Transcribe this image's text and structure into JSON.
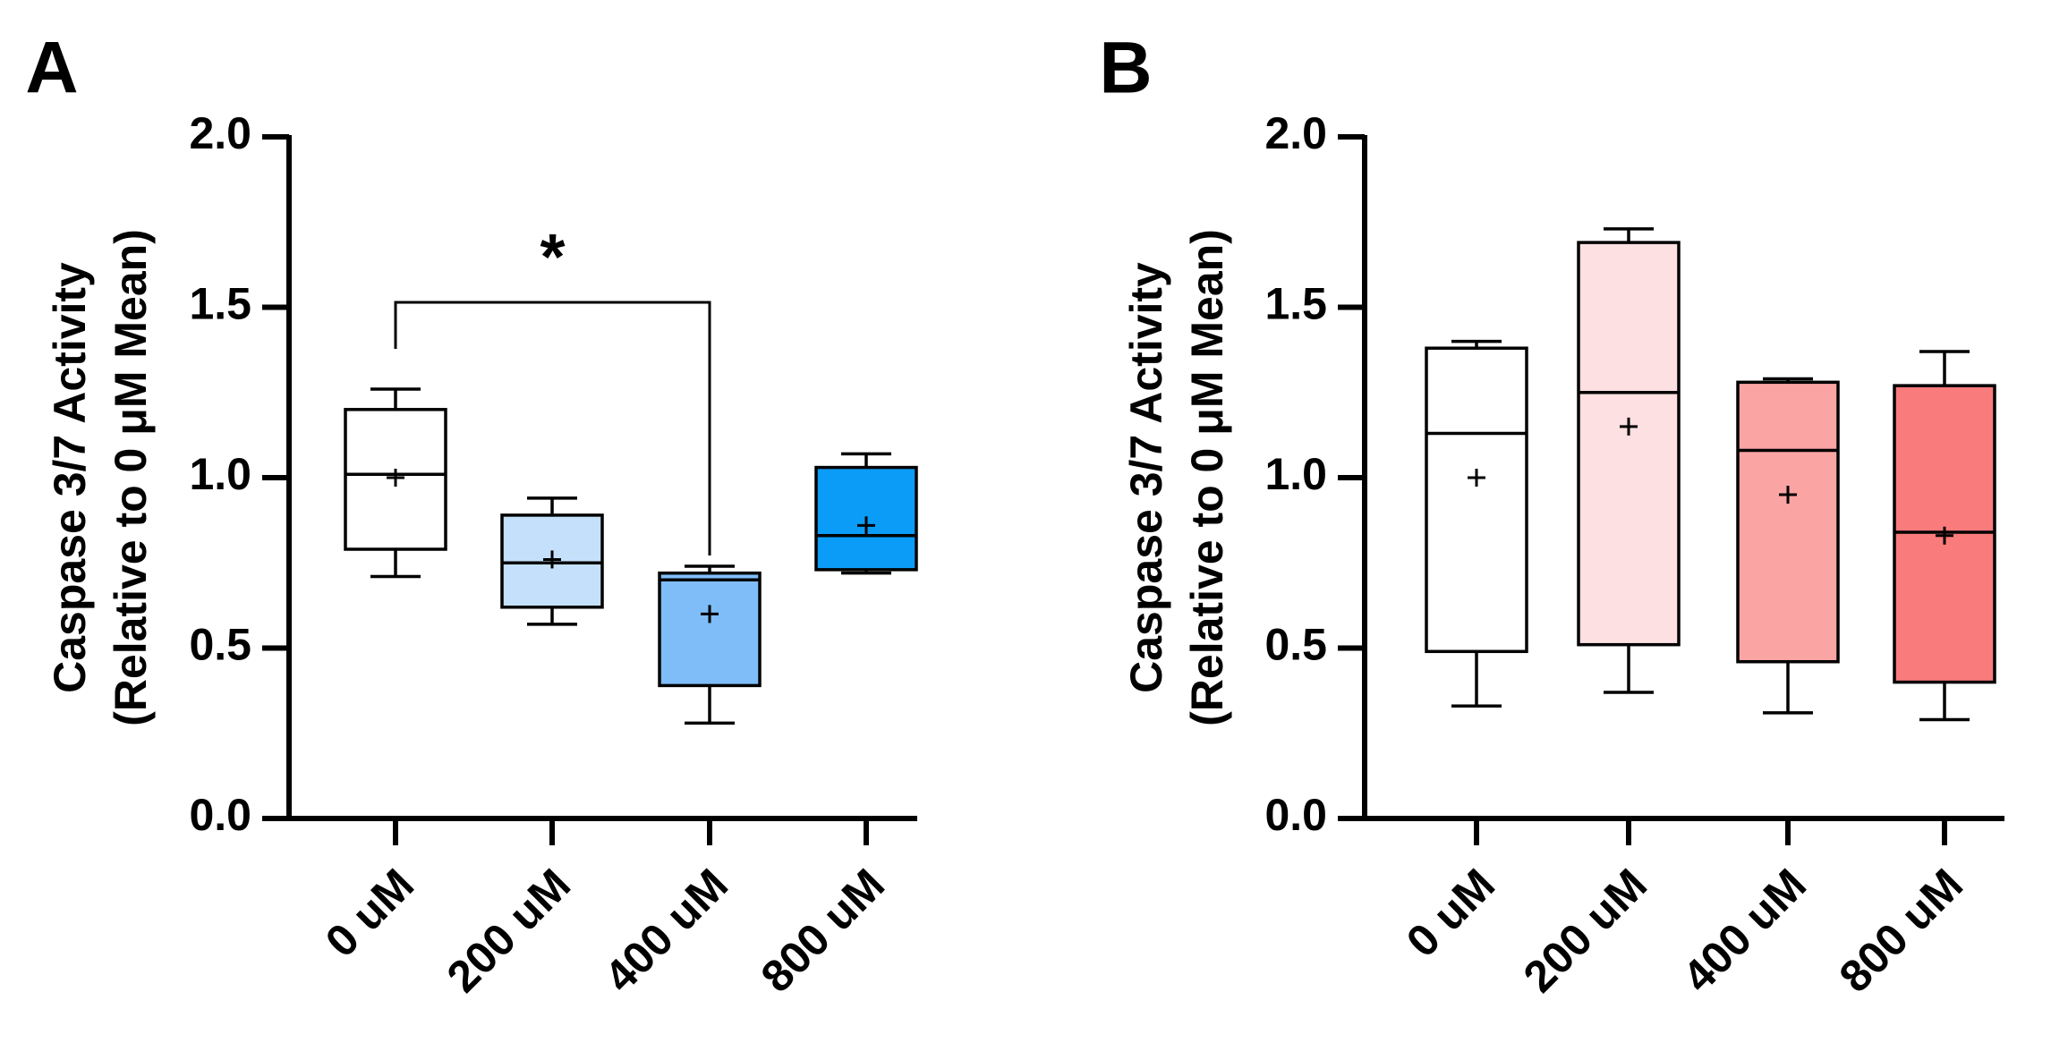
{
  "chart_data": [
    {
      "type": "box",
      "panel_label": "A",
      "ylabel_line1": "Caspase 3/7 Activity",
      "ylabel_line2": "(Relative to 0 μM Mean)",
      "ylim": [
        0,
        2.0
      ],
      "yticks": [
        "0.0",
        "0.5",
        "1.0",
        "1.5",
        "2.0"
      ],
      "categories": [
        "0 uM",
        "200 uM",
        "400 uM",
        "800 uM"
      ],
      "colors": [
        "#ffffff",
        "#c5e0fa",
        "#7fbdf8",
        "#0b9cf7"
      ],
      "boxes": [
        {
          "min": 0.71,
          "q1": 0.79,
          "median": 1.01,
          "q3": 1.2,
          "max": 1.26,
          "mean": 1.0
        },
        {
          "min": 0.57,
          "q1": 0.62,
          "median": 0.75,
          "q3": 0.89,
          "max": 0.94,
          "mean": 0.76
        },
        {
          "min": 0.28,
          "q1": 0.39,
          "median": 0.7,
          "q3": 0.72,
          "max": 0.74,
          "mean": 0.6
        },
        {
          "min": 0.72,
          "q1": 0.73,
          "median": 0.83,
          "q3": 1.03,
          "max": 1.07,
          "mean": 0.86
        }
      ],
      "significance": {
        "from": 0,
        "to": 2,
        "label": "*"
      }
    },
    {
      "type": "box",
      "panel_label": "B",
      "ylabel_line1": "Caspase 3/7 Activity",
      "ylabel_line2": "(Relative to 0 μM Mean)",
      "ylim": [
        0,
        2.0
      ],
      "yticks": [
        "0.0",
        "0.5",
        "1.0",
        "1.5",
        "2.0"
      ],
      "categories": [
        "0 uM",
        "200 uM",
        "400 uM",
        "800 uM"
      ],
      "colors": [
        "#ffffff",
        "#fde0e1",
        "#fba4a4",
        "#fa7b7c"
      ],
      "boxes": [
        {
          "min": 0.33,
          "q1": 0.49,
          "median": 1.13,
          "q3": 1.38,
          "max": 1.4,
          "mean": 1.0
        },
        {
          "min": 0.37,
          "q1": 0.51,
          "median": 1.25,
          "q3": 1.69,
          "max": 1.73,
          "mean": 1.15
        },
        {
          "min": 0.31,
          "q1": 0.46,
          "median": 1.08,
          "q3": 1.28,
          "max": 1.29,
          "mean": 0.95
        },
        {
          "min": 0.29,
          "q1": 0.4,
          "median": 0.84,
          "q3": 1.27,
          "max": 1.37,
          "mean": 0.83
        }
      ]
    }
  ]
}
